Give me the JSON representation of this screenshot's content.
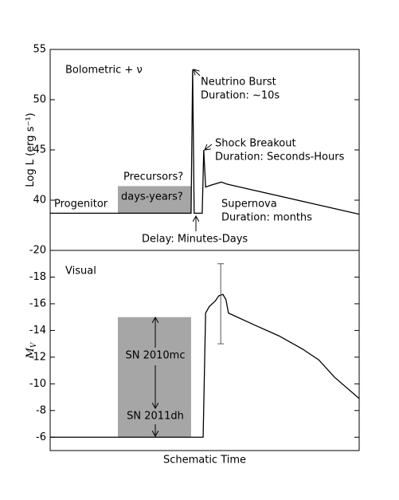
{
  "chart_data": [
    {
      "type": "line",
      "ylabel": "Log L (erg s⁻¹)",
      "xlim": [
        0,
        100
      ],
      "ylim": [
        35,
        55
      ],
      "yticks": [
        40,
        45,
        50,
        55
      ],
      "series": [
        {
          "color": "#000000",
          "x": [
            0,
            45.6,
            46.1,
            46.6,
            49.2,
            49.7,
            50.3,
            52.1,
            55.4,
            57.2,
            100
          ],
          "values": [
            38.7,
            38.7,
            53.0,
            38.7,
            38.7,
            45.0,
            41.3,
            41.5,
            41.8,
            41.6,
            38.6
          ]
        }
      ],
      "shaded_regions": [
        {
          "x": [
            21.9,
            45.6
          ],
          "y": [
            38.7,
            41.4
          ],
          "color": "#a6a6a6"
        }
      ],
      "annotations": [
        "Bolometric + ν",
        "Neutrino Burst",
        "Duration: ~10s",
        "Shock Breakout",
        "Duration: Seconds-Hours",
        "Precursors?",
        "days-years?",
        "Progenitor",
        "Supernova",
        "Duration: months",
        "Delay: Minutes-Days"
      ]
    },
    {
      "type": "line",
      "xlabel": "Schematic Time",
      "ylabel": "M",
      "ylabel_sub": "V",
      "xlim": [
        0,
        100
      ],
      "ylim": [
        -5,
        -20
      ],
      "yticks": [
        -20,
        -18,
        -16,
        -14,
        -12,
        -10,
        -8,
        -6
      ],
      "series": [
        {
          "color": "#000000",
          "x": [
            0,
            49.5,
            50.3,
            51.5,
            53.4,
            54.6,
            55.9,
            56.9,
            57.7,
            66.2,
            74,
            81.7,
            86.9,
            92,
            100
          ],
          "values": [
            -6,
            -6,
            -15.3,
            -15.8,
            -16.2,
            -16.6,
            -16.7,
            -16.3,
            -15.3,
            -14.4,
            -13.6,
            -12.6,
            -11.8,
            -10.5,
            -8.9
          ]
        }
      ],
      "error_bars": [
        {
          "x": 55.2,
          "value": -16,
          "error": 3
        }
      ],
      "shaded_regions": [
        {
          "x": [
            21.9,
            45.6
          ],
          "y": [
            -15,
            -6
          ],
          "color": "#a6a6a6"
        }
      ],
      "annotations": [
        "Visual",
        "SN 2010mc",
        "SN 2011dh"
      ]
    }
  ]
}
